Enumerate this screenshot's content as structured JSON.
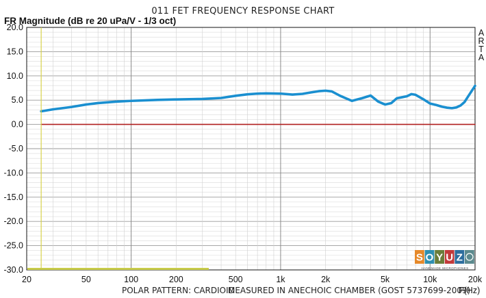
{
  "header": {
    "title": "011 FET FREQUENCY RESPONSE CHART",
    "y_axis_title": "FR Magnitude (dB re 20 uPa/V - 1/3 oct)",
    "side_label": "ARTA"
  },
  "footer": {
    "pattern": "POLAR PATTERN: CARDIOID",
    "measured": "MEASURED IN ANECHOIC CHAMBER (GOST 5737699-2009)",
    "x_unit": "F(Hz)"
  },
  "logo": {
    "letters": [
      "S",
      "O",
      "Y",
      "U",
      "Z"
    ],
    "subtitle": "HANDMADE MICROPHONES",
    "colors": [
      "#e6892a",
      "#2e8fb0",
      "#6a7d3a",
      "#c23a3a",
      "#2d6e9e",
      "#5b8a8e"
    ]
  },
  "chart_data": {
    "type": "line",
    "title": "011 FET FREQUENCY RESPONSE CHART",
    "xlabel": "F(Hz)",
    "ylabel": "FR Magnitude (dB re 20 uPa/V - 1/3 oct)",
    "x_scale": "log",
    "xlim": [
      20,
      20000
    ],
    "ylim": [
      -30,
      20
    ],
    "grid": true,
    "x_ticks": [
      {
        "value": 20,
        "label": "20"
      },
      {
        "value": 50,
        "label": "50"
      },
      {
        "value": 100,
        "label": "100"
      },
      {
        "value": 200,
        "label": "200"
      },
      {
        "value": 500,
        "label": "500"
      },
      {
        "value": 1000,
        "label": "1k"
      },
      {
        "value": 2000,
        "label": "2k"
      },
      {
        "value": 5000,
        "label": "5k"
      },
      {
        "value": 10000,
        "label": "10k"
      },
      {
        "value": 20000,
        "label": "20k"
      }
    ],
    "y_ticks": [
      {
        "value": 20,
        "label": "20.0"
      },
      {
        "value": 15,
        "label": "15.0"
      },
      {
        "value": 10,
        "label": "10.0"
      },
      {
        "value": 5,
        "label": "5.0"
      },
      {
        "value": 0,
        "label": "0.0"
      },
      {
        "value": -5,
        "label": "-5.0"
      },
      {
        "value": -10,
        "label": "-10.0"
      },
      {
        "value": -15,
        "label": "-15.0"
      },
      {
        "value": -20,
        "label": "-20.0"
      },
      {
        "value": -25,
        "label": "-25.0"
      },
      {
        "value": -30,
        "label": "-30.0"
      }
    ],
    "marker_line_x": 25,
    "series": [
      {
        "color": "#1a8fd0",
        "x": [
          25,
          30,
          40,
          50,
          60,
          80,
          100,
          150,
          200,
          300,
          400,
          500,
          600,
          700,
          800,
          1000,
          1200,
          1400,
          1600,
          1800,
          2000,
          2200,
          2500,
          3000,
          3500,
          4000,
          4500,
          5000,
          5500,
          6000,
          6500,
          7000,
          7500,
          8000,
          9000,
          10000,
          11000,
          12000,
          13000,
          14000,
          15000,
          16000,
          17000,
          18000,
          20000
        ],
        "y": [
          2.7,
          3.1,
          3.6,
          4.1,
          4.4,
          4.7,
          4.85,
          5.05,
          5.15,
          5.25,
          5.45,
          5.9,
          6.2,
          6.35,
          6.4,
          6.35,
          6.15,
          6.3,
          6.6,
          6.85,
          6.95,
          6.8,
          5.9,
          4.85,
          5.4,
          5.95,
          4.7,
          4.1,
          4.4,
          5.4,
          5.6,
          5.8,
          6.25,
          6.1,
          5.2,
          4.3,
          4.0,
          3.65,
          3.45,
          3.35,
          3.5,
          3.9,
          4.6,
          5.8,
          7.95
        ]
      },
      {
        "color": "#b01e1e",
        "x": [
          25,
          20000
        ],
        "y": [
          0,
          0
        ]
      }
    ]
  }
}
